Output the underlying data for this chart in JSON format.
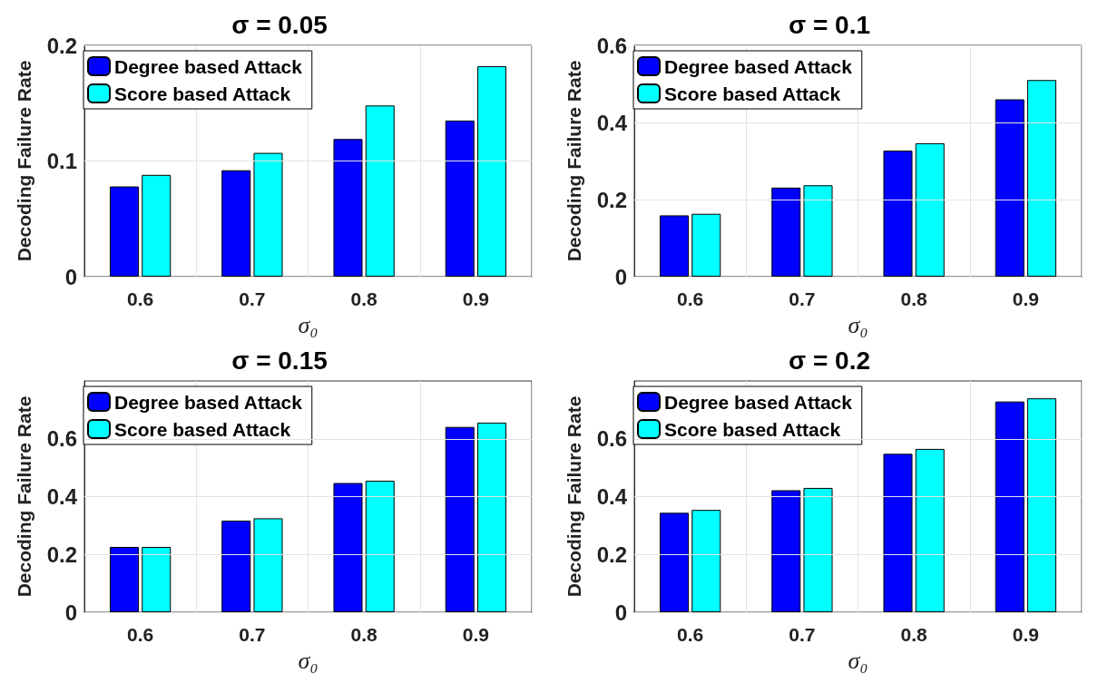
{
  "chart_data": [
    {
      "type": "bar",
      "title": "σ = 0.05",
      "xlabel": "σ₀",
      "ylabel": "Decoding Failure Rate",
      "categories": [
        "0.6",
        "0.7",
        "0.8",
        "0.9"
      ],
      "series": [
        {
          "name": "Degree based Attack",
          "color": "#0000ff",
          "values": [
            0.078,
            0.092,
            0.119,
            0.135
          ]
        },
        {
          "name": "Score based Attack",
          "color": "#00ffff",
          "values": [
            0.088,
            0.107,
            0.148,
            0.182
          ]
        }
      ],
      "ylim": [
        0,
        0.2
      ],
      "yticks": [
        0,
        0.1,
        0.2
      ],
      "grid": true,
      "legend": "top left"
    },
    {
      "type": "bar",
      "title": "σ = 0.1",
      "xlabel": "σ₀",
      "ylabel": "Decoding Failure Rate",
      "categories": [
        "0.6",
        "0.7",
        "0.8",
        "0.9"
      ],
      "series": [
        {
          "name": "Degree based Attack",
          "color": "#0000ff",
          "values": [
            0.159,
            0.231,
            0.327,
            0.46
          ]
        },
        {
          "name": "Score based Attack",
          "color": "#00ffff",
          "values": [
            0.163,
            0.237,
            0.346,
            0.51
          ]
        }
      ],
      "ylim": [
        0,
        0.6
      ],
      "yticks": [
        0,
        0.2,
        0.4,
        0.6
      ],
      "grid": true,
      "legend": "top left"
    },
    {
      "type": "bar",
      "title": "σ = 0.15",
      "xlabel": "σ₀",
      "ylabel": "Decoding Failure Rate",
      "categories": [
        "0.6",
        "0.7",
        "0.8",
        "0.9"
      ],
      "series": [
        {
          "name": "Degree based Attack",
          "color": "#0000ff",
          "values": [
            0.226,
            0.317,
            0.447,
            0.641
          ]
        },
        {
          "name": "Score based Attack",
          "color": "#00ffff",
          "values": [
            0.226,
            0.325,
            0.455,
            0.656
          ]
        }
      ],
      "ylim": [
        0,
        0.8
      ],
      "yticks": [
        0,
        0.2,
        0.4,
        0.6
      ],
      "grid": true,
      "legend": "top left"
    },
    {
      "type": "bar",
      "title": "σ = 0.2",
      "xlabel": "σ₀",
      "ylabel": "Decoding Failure Rate",
      "categories": [
        "0.6",
        "0.7",
        "0.8",
        "0.9"
      ],
      "series": [
        {
          "name": "Degree based Attack",
          "color": "#0000ff",
          "values": [
            0.344,
            0.422,
            0.548,
            0.729
          ]
        },
        {
          "name": "Score based Attack",
          "color": "#00ffff",
          "values": [
            0.354,
            0.43,
            0.565,
            0.74
          ]
        }
      ],
      "ylim": [
        0,
        0.8
      ],
      "yticks": [
        0,
        0.2,
        0.4,
        0.6
      ],
      "grid": true,
      "legend": "top left"
    }
  ]
}
